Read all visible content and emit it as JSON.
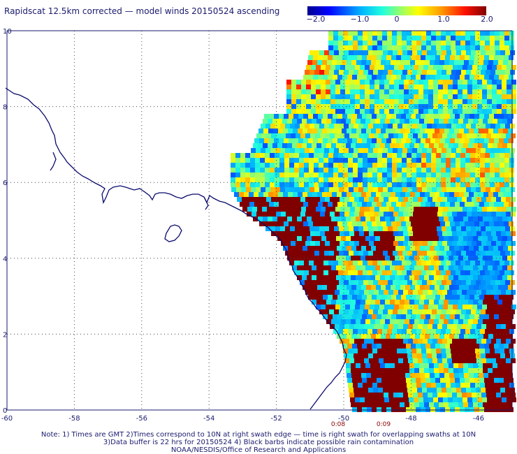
{
  "title": "Rapidscat 12.5km corrected — model winds 20150524 ascending",
  "colorbar": {
    "labels": [
      "−2.0",
      "−1.0",
      "0",
      "1.0",
      "2.0"
    ],
    "range": [
      -2.0,
      2.0
    ]
  },
  "map": {
    "lon_range": [
      -60,
      -45
    ],
    "lat_range": [
      0,
      10
    ],
    "lon_ticks": [
      "-60",
      "-58",
      "-56",
      "-54",
      "-52",
      "-50",
      "-48",
      "-46"
    ],
    "lat_ticks": [
      "0",
      "2",
      "4",
      "6",
      "8",
      "10"
    ],
    "gridlines": true,
    "times": [
      "0:08",
      "0:09"
    ]
  },
  "notes": {
    "line1": "Note: 1) Times are GMT 2)Times correspond to 10N at right swath edge — time is right swath for overlapping swaths at 10N",
    "line2": "3)Data buffer is 22 hrs for 20150524 4) Black barbs indicate possible rain contamination",
    "line3": "NOAA/NESDIS/Office of Research and Applications"
  },
  "colors": {
    "text": "#1a1a6e",
    "coast": "#0a0a6e",
    "rain_flag": "#8b0000",
    "grid": "#555555"
  }
}
